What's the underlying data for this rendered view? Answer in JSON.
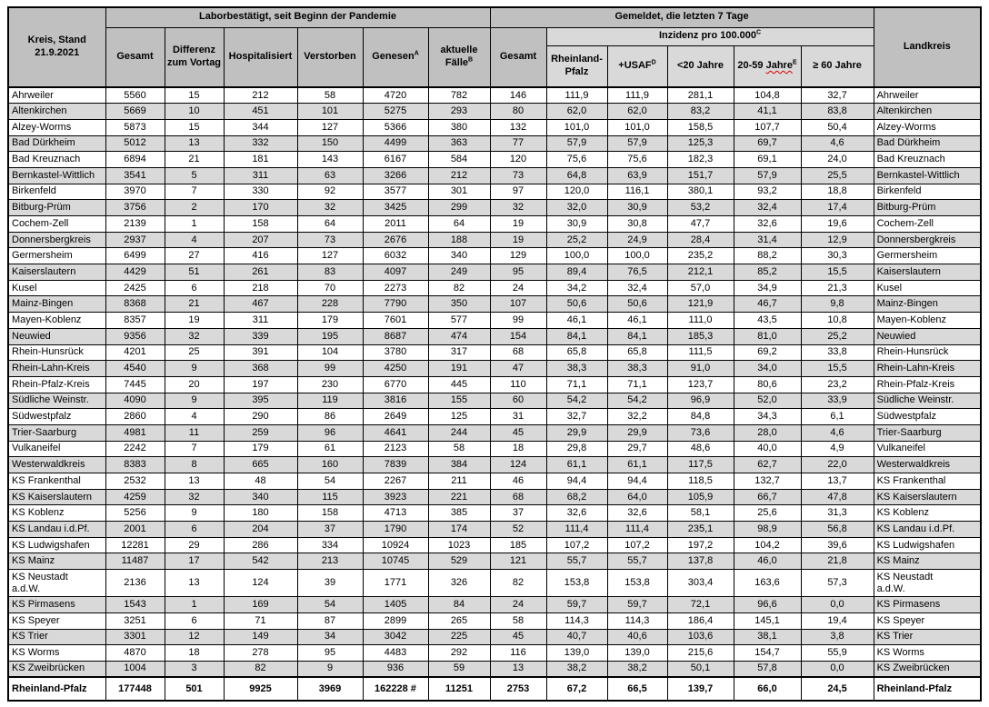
{
  "colors": {
    "header_gray": "#c0c0c0",
    "band_light": "#d9d9d9",
    "row_stripe": "#d9d9d9",
    "border": "#000000",
    "spellcheck_red": "#dd0000"
  },
  "header": {
    "kreis": "Kreis, Stand 21.9.2021",
    "group_pandemic": "Laborbestätigt, seit Beginn der Pandemie",
    "group_week": "Gemeldet, die letzten 7 Tage",
    "landkreis": "Landkreis",
    "gesamt": "Gesamt",
    "differenz": "Differenz zum Vortag",
    "hospitalisiert": "Hospitalisiert",
    "verstorben": "Verstorben",
    "genesen": {
      "text": "Genesen",
      "sup": "A"
    },
    "aktuelle_faelle": {
      "text": "aktuelle Fälle",
      "sup": "B"
    },
    "week_gesamt": "Gesamt",
    "inzidenz_band": {
      "text": "Inzidenz pro 100.000",
      "sup": "C"
    },
    "rheinland_pfalz": "Rheinland-Pfalz",
    "usaf": {
      "text": "+USAF",
      "sup": "D"
    },
    "unter20": "<20 Jahre",
    "jahre_20_59": {
      "prefix": "20-59 ",
      "word": "Jahre",
      "sup": "E"
    },
    "ab60": "≥ 60 Jahre"
  },
  "rows": [
    {
      "name": "Ahrweiler",
      "values": [
        "5560",
        "15",
        "212",
        "58",
        "4720",
        "782",
        "146",
        "111,9",
        "111,9",
        "281,1",
        "104,8",
        "32,7"
      ]
    },
    {
      "name": "Altenkirchen",
      "values": [
        "5669",
        "10",
        "451",
        "101",
        "5275",
        "293",
        "80",
        "62,0",
        "62,0",
        "83,2",
        "41,1",
        "83,8"
      ]
    },
    {
      "name": "Alzey-Worms",
      "values": [
        "5873",
        "15",
        "344",
        "127",
        "5366",
        "380",
        "132",
        "101,0",
        "101,0",
        "158,5",
        "107,7",
        "50,4"
      ]
    },
    {
      "name": "Bad Dürkheim",
      "values": [
        "5012",
        "13",
        "332",
        "150",
        "4499",
        "363",
        "77",
        "57,9",
        "57,9",
        "125,3",
        "69,7",
        "4,6"
      ]
    },
    {
      "name": "Bad Kreuznach",
      "values": [
        "6894",
        "21",
        "181",
        "143",
        "6167",
        "584",
        "120",
        "75,6",
        "75,6",
        "182,3",
        "69,1",
        "24,0"
      ]
    },
    {
      "name": "Bernkastel-Wittlich",
      "values": [
        "3541",
        "5",
        "311",
        "63",
        "3266",
        "212",
        "73",
        "64,8",
        "63,9",
        "151,7",
        "57,9",
        "25,5"
      ]
    },
    {
      "name": "Birkenfeld",
      "values": [
        "3970",
        "7",
        "330",
        "92",
        "3577",
        "301",
        "97",
        "120,0",
        "116,1",
        "380,1",
        "93,2",
        "18,8"
      ]
    },
    {
      "name": "Bitburg-Prüm",
      "values": [
        "3756",
        "2",
        "170",
        "32",
        "3425",
        "299",
        "32",
        "32,0",
        "30,9",
        "53,2",
        "32,4",
        "17,4"
      ]
    },
    {
      "name": "Cochem-Zell",
      "values": [
        "2139",
        "1",
        "158",
        "64",
        "2011",
        "64",
        "19",
        "30,9",
        "30,8",
        "47,7",
        "32,6",
        "19,6"
      ]
    },
    {
      "name": "Donnersbergkreis",
      "values": [
        "2937",
        "4",
        "207",
        "73",
        "2676",
        "188",
        "19",
        "25,2",
        "24,9",
        "28,4",
        "31,4",
        "12,9"
      ]
    },
    {
      "name": "Germersheim",
      "values": [
        "6499",
        "27",
        "416",
        "127",
        "6032",
        "340",
        "129",
        "100,0",
        "100,0",
        "235,2",
        "88,2",
        "30,3"
      ]
    },
    {
      "name": "Kaiserslautern",
      "values": [
        "4429",
        "51",
        "261",
        "83",
        "4097",
        "249",
        "95",
        "89,4",
        "76,5",
        "212,1",
        "85,2",
        "15,5"
      ]
    },
    {
      "name": "Kusel",
      "values": [
        "2425",
        "6",
        "218",
        "70",
        "2273",
        "82",
        "24",
        "34,2",
        "32,4",
        "57,0",
        "34,9",
        "21,3"
      ]
    },
    {
      "name": "Mainz-Bingen",
      "values": [
        "8368",
        "21",
        "467",
        "228",
        "7790",
        "350",
        "107",
        "50,6",
        "50,6",
        "121,9",
        "46,7",
        "9,8"
      ]
    },
    {
      "name": "Mayen-Koblenz",
      "values": [
        "8357",
        "19",
        "311",
        "179",
        "7601",
        "577",
        "99",
        "46,1",
        "46,1",
        "111,0",
        "43,5",
        "10,8"
      ]
    },
    {
      "name": "Neuwied",
      "values": [
        "9356",
        "32",
        "339",
        "195",
        "8687",
        "474",
        "154",
        "84,1",
        "84,1",
        "185,3",
        "81,0",
        "25,2"
      ]
    },
    {
      "name": "Rhein-Hunsrück",
      "values": [
        "4201",
        "25",
        "391",
        "104",
        "3780",
        "317",
        "68",
        "65,8",
        "65,8",
        "111,5",
        "69,2",
        "33,8"
      ]
    },
    {
      "name": "Rhein-Lahn-Kreis",
      "values": [
        "4540",
        "9",
        "368",
        "99",
        "4250",
        "191",
        "47",
        "38,3",
        "38,3",
        "91,0",
        "34,0",
        "15,5"
      ]
    },
    {
      "name": "Rhein-Pfalz-Kreis",
      "values": [
        "7445",
        "20",
        "197",
        "230",
        "6770",
        "445",
        "110",
        "71,1",
        "71,1",
        "123,7",
        "80,6",
        "23,2"
      ]
    },
    {
      "name": "Südliche Weinstr.",
      "values": [
        "4090",
        "9",
        "395",
        "119",
        "3816",
        "155",
        "60",
        "54,2",
        "54,2",
        "96,9",
        "52,0",
        "33,9"
      ]
    },
    {
      "name": "Südwestpfalz",
      "values": [
        "2860",
        "4",
        "290",
        "86",
        "2649",
        "125",
        "31",
        "32,7",
        "32,2",
        "84,8",
        "34,3",
        "6,1"
      ]
    },
    {
      "name": "Trier-Saarburg",
      "values": [
        "4981",
        "11",
        "259",
        "96",
        "4641",
        "244",
        "45",
        "29,9",
        "29,9",
        "73,6",
        "28,0",
        "4,6"
      ]
    },
    {
      "name": "Vulkaneifel",
      "values": [
        "2242",
        "7",
        "179",
        "61",
        "2123",
        "58",
        "18",
        "29,8",
        "29,7",
        "48,6",
        "40,0",
        "4,9"
      ]
    },
    {
      "name": "Westerwaldkreis",
      "values": [
        "8383",
        "8",
        "665",
        "160",
        "7839",
        "384",
        "124",
        "61,1",
        "61,1",
        "117,5",
        "62,7",
        "22,0"
      ]
    },
    {
      "name": "KS Frankenthal",
      "values": [
        "2532",
        "13",
        "48",
        "54",
        "2267",
        "211",
        "46",
        "94,4",
        "94,4",
        "118,5",
        "132,7",
        "13,7"
      ]
    },
    {
      "name": "KS Kaiserslautern",
      "values": [
        "4259",
        "32",
        "340",
        "115",
        "3923",
        "221",
        "68",
        "68,2",
        "64,0",
        "105,9",
        "66,7",
        "47,8"
      ]
    },
    {
      "name": "KS Koblenz",
      "values": [
        "5256",
        "9",
        "180",
        "158",
        "4713",
        "385",
        "37",
        "32,6",
        "32,6",
        "58,1",
        "25,6",
        "31,3"
      ]
    },
    {
      "name": "KS Landau i.d.Pf.",
      "values": [
        "2001",
        "6",
        "204",
        "37",
        "1790",
        "174",
        "52",
        "111,4",
        "111,4",
        "235,1",
        "98,9",
        "56,8"
      ]
    },
    {
      "name": "KS Ludwigshafen",
      "values": [
        "12281",
        "29",
        "286",
        "334",
        "10924",
        "1023",
        "185",
        "107,2",
        "107,2",
        "197,2",
        "104,2",
        "39,6"
      ]
    },
    {
      "name": "KS Mainz",
      "values": [
        "11487",
        "17",
        "542",
        "213",
        "10745",
        "529",
        "121",
        "55,7",
        "55,7",
        "137,8",
        "46,0",
        "21,8"
      ]
    },
    {
      "name": "KS Neustadt a.d.W.",
      "tall": true,
      "values": [
        "2136",
        "13",
        "124",
        "39",
        "1771",
        "326",
        "82",
        "153,8",
        "153,8",
        "303,4",
        "163,6",
        "57,3"
      ]
    },
    {
      "name": "KS Pirmasens",
      "values": [
        "1543",
        "1",
        "169",
        "54",
        "1405",
        "84",
        "24",
        "59,7",
        "59,7",
        "72,1",
        "96,6",
        "0,0"
      ]
    },
    {
      "name": "KS Speyer",
      "values": [
        "3251",
        "6",
        "71",
        "87",
        "2899",
        "265",
        "58",
        "114,3",
        "114,3",
        "186,4",
        "145,1",
        "19,4"
      ]
    },
    {
      "name": "KS Trier",
      "values": [
        "3301",
        "12",
        "149",
        "34",
        "3042",
        "225",
        "45",
        "40,7",
        "40,6",
        "103,6",
        "38,1",
        "3,8"
      ]
    },
    {
      "name": "KS Worms",
      "values": [
        "4870",
        "18",
        "278",
        "95",
        "4483",
        "292",
        "116",
        "139,0",
        "139,0",
        "215,6",
        "154,7",
        "55,9"
      ]
    },
    {
      "name": "KS Zweibrücken",
      "values": [
        "1004",
        "3",
        "82",
        "9",
        "936",
        "59",
        "13",
        "38,2",
        "38,2",
        "50,1",
        "57,8",
        "0,0"
      ]
    }
  ],
  "total": {
    "name": "Rheinland-Pfalz",
    "values": [
      "177448",
      "501",
      "9925",
      "3969",
      "162228 #",
      "11251",
      "2753",
      "67,2",
      "66,5",
      "139,7",
      "66,0",
      "24,5"
    ]
  },
  "column_keys": [
    "gesamt",
    "differenz-vortag",
    "hospitalisiert",
    "verstorben",
    "genesen",
    "aktuelle-faelle",
    "gesamt-7-tage",
    "inzidenz-rlp",
    "inzidenz-usaf",
    "inzidenz-unter-20",
    "inzidenz-20-59",
    "inzidenz-ab-60"
  ]
}
